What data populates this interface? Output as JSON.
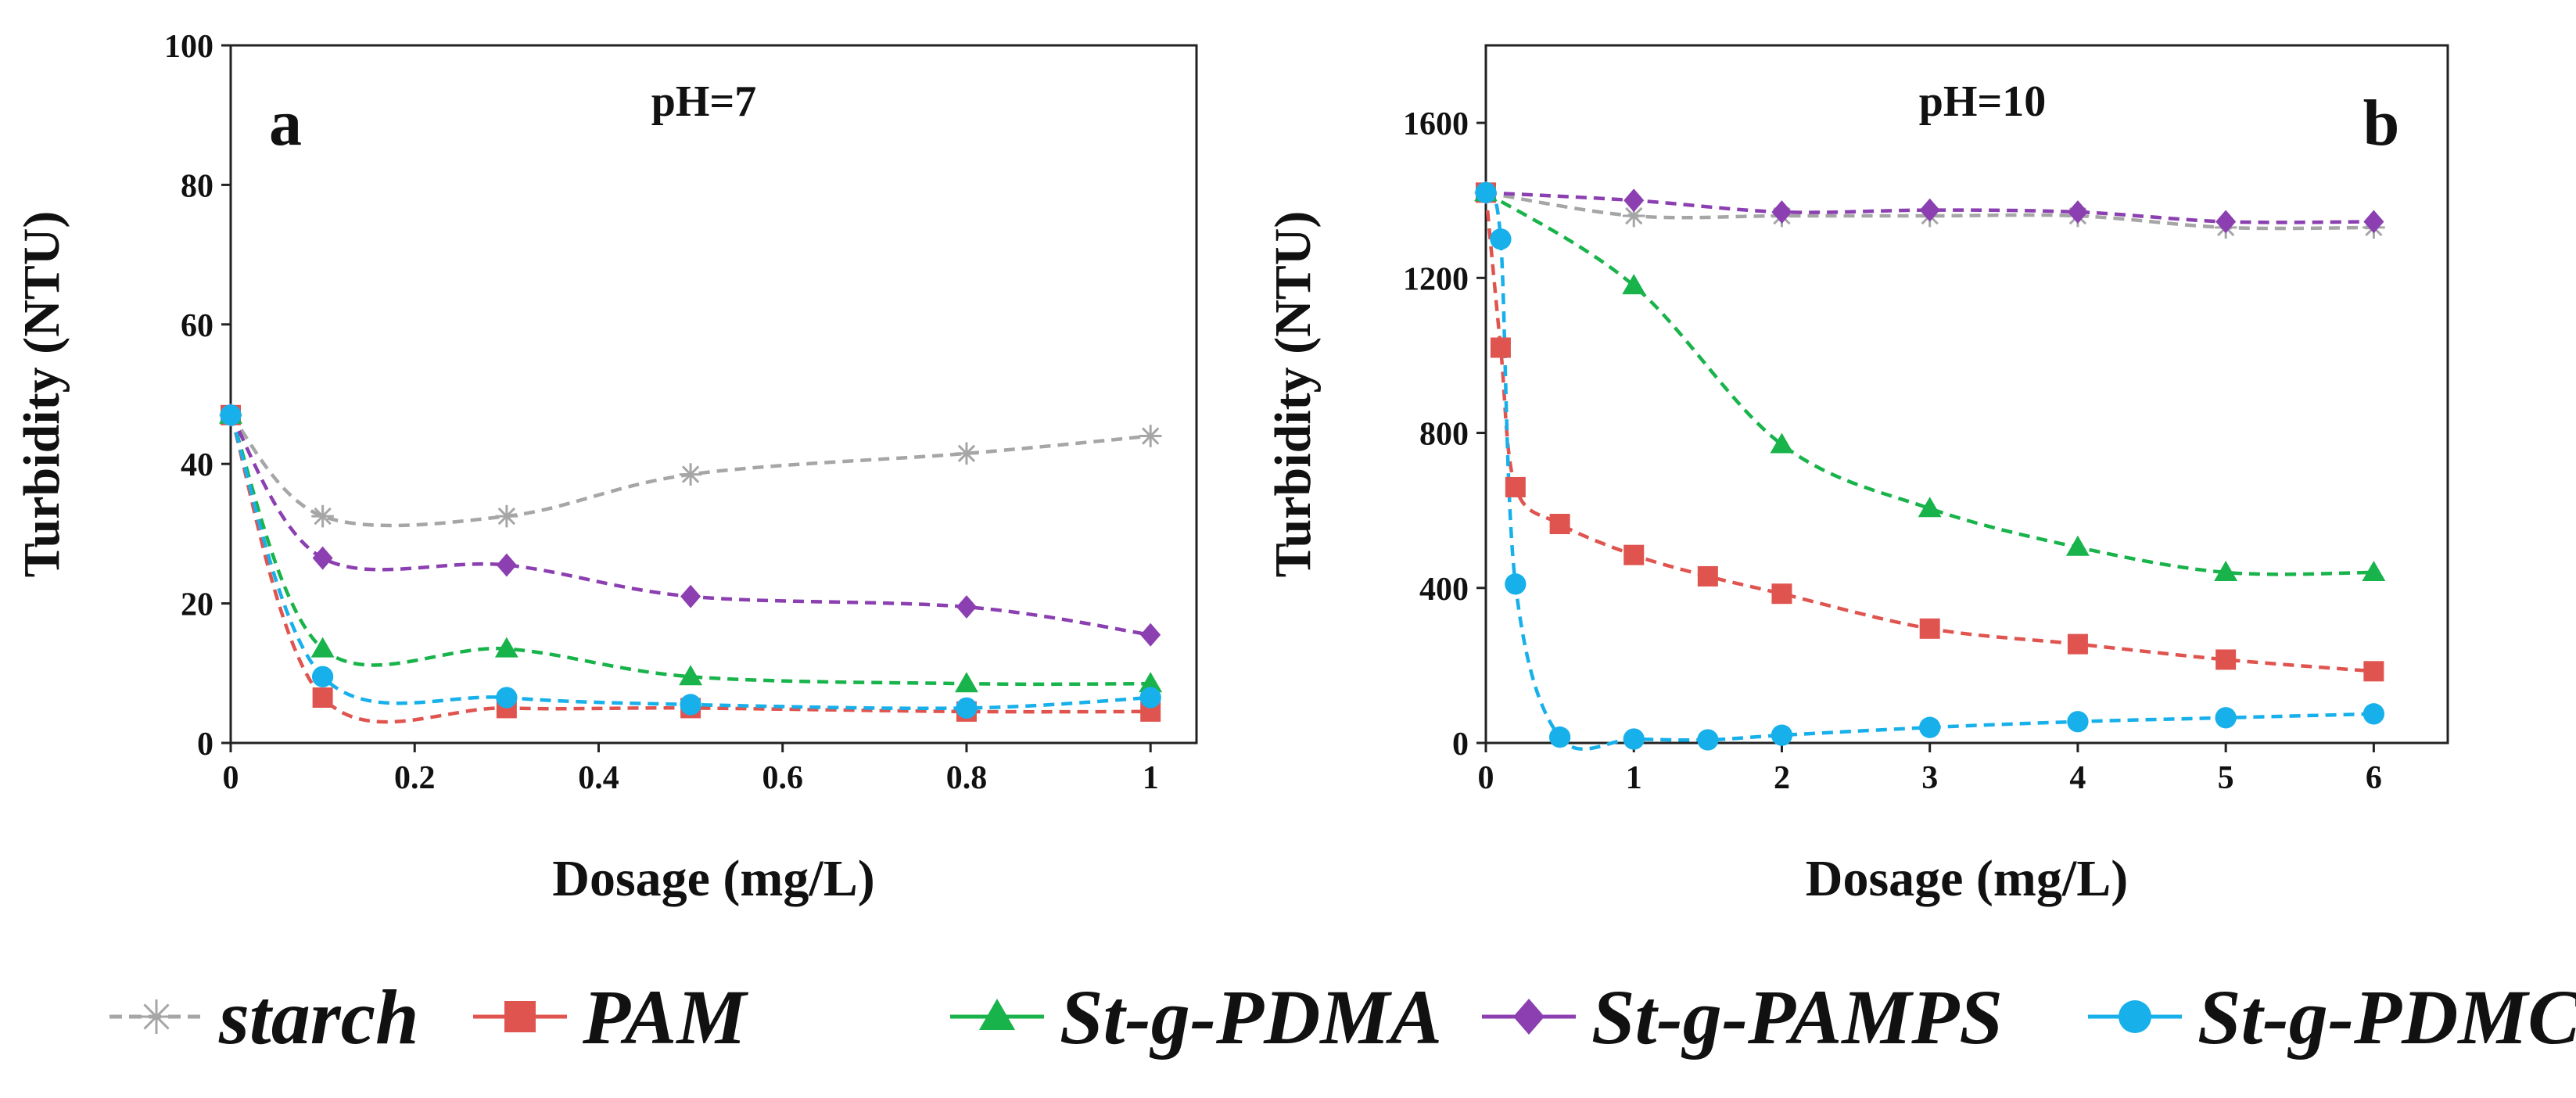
{
  "chart_data": [
    {
      "type": "line",
      "panel_label": "a",
      "title": "pH=7",
      "xlabel": "Dosage (mg/L)",
      "ylabel": "Turbidity (NTU)",
      "xlim": [
        0,
        1.05
      ],
      "ylim": [
        0,
        100
      ],
      "xticks": [
        0,
        0.2,
        0.4,
        0.6,
        0.8,
        1
      ],
      "xtick_labels": [
        "0",
        "0.2",
        "0.4",
        "0.6",
        "0.8",
        "1"
      ],
      "yticks": [
        0,
        20,
        40,
        60,
        80,
        100
      ],
      "ytick_labels": [
        "0",
        "20",
        "40",
        "60",
        "80",
        "100"
      ],
      "x": [
        0,
        0.1,
        0.3,
        0.5,
        0.8,
        1
      ],
      "series": [
        {
          "name": "starch",
          "values": [
            47,
            32.5,
            32.5,
            38.5,
            41.5,
            44
          ]
        },
        {
          "name": "PAM",
          "values": [
            47,
            6.5,
            5,
            5,
            4.5,
            4.5
          ]
        },
        {
          "name": "St-g-PDMA",
          "values": [
            47,
            13.5,
            13.5,
            9.5,
            8.5,
            8.5
          ]
        },
        {
          "name": "St-g-PAMPS",
          "values": [
            47,
            26.5,
            25.5,
            21,
            19.5,
            15.5
          ]
        },
        {
          "name": "St-g-PDMC",
          "values": [
            47,
            9.5,
            6.5,
            5.5,
            5,
            6.5
          ]
        }
      ]
    },
    {
      "type": "line",
      "panel_label": "b",
      "title": "pH=10",
      "xlabel": "Dosage (mg/L)",
      "ylabel": "Turbidity (NTU)",
      "xlim": [
        0,
        6.5
      ],
      "ylim": [
        0,
        1800
      ],
      "xticks": [
        0,
        1,
        2,
        3,
        4,
        5,
        6
      ],
      "xtick_labels": [
        "0",
        "1",
        "2",
        "3",
        "4",
        "5",
        "6"
      ],
      "yticks": [
        0,
        400,
        800,
        1200,
        1600
      ],
      "ytick_labels": [
        "0",
        "400",
        "800",
        "1200",
        "1600"
      ],
      "series": [
        {
          "name": "starch",
          "x": [
            0,
            1,
            2,
            3,
            4,
            5,
            6
          ],
          "values": [
            1420,
            1360,
            1360,
            1360,
            1360,
            1330,
            1330
          ]
        },
        {
          "name": "PAM",
          "x": [
            0,
            0.1,
            0.2,
            0.5,
            1,
            1.5,
            2,
            3,
            4,
            5,
            6
          ],
          "values": [
            1420,
            1020,
            660,
            565,
            485,
            430,
            385,
            295,
            255,
            215,
            185
          ]
        },
        {
          "name": "St-g-PDMA",
          "x": [
            0,
            1,
            2,
            3,
            4,
            5,
            6
          ],
          "values": [
            1420,
            1180,
            770,
            605,
            505,
            440,
            440
          ]
        },
        {
          "name": "St-g-PAMPS",
          "x": [
            0,
            1,
            2,
            3,
            4,
            5,
            6
          ],
          "values": [
            1420,
            1400,
            1370,
            1375,
            1370,
            1345,
            1345
          ]
        },
        {
          "name": "St-g-PDMC",
          "x": [
            0,
            0.1,
            0.2,
            0.5,
            1,
            1.5,
            2,
            3,
            4,
            5,
            6
          ],
          "values": [
            1420,
            1300,
            410,
            15,
            10,
            8,
            20,
            40,
            55,
            65,
            75
          ]
        }
      ]
    }
  ],
  "legend": [
    {
      "name": "starch",
      "color": "#a6a6a6",
      "marker": "asterisk"
    },
    {
      "name": "PAM",
      "color": "#e0544f",
      "marker": "square"
    },
    {
      "name": "St-g-PDMA",
      "color": "#18b34a",
      "marker": "triangle"
    },
    {
      "name": "St-g-PAMPS",
      "color": "#8b3fb1",
      "marker": "diamond"
    },
    {
      "name": "St-g-PDMC",
      "color": "#17b0ea",
      "marker": "circle"
    }
  ]
}
